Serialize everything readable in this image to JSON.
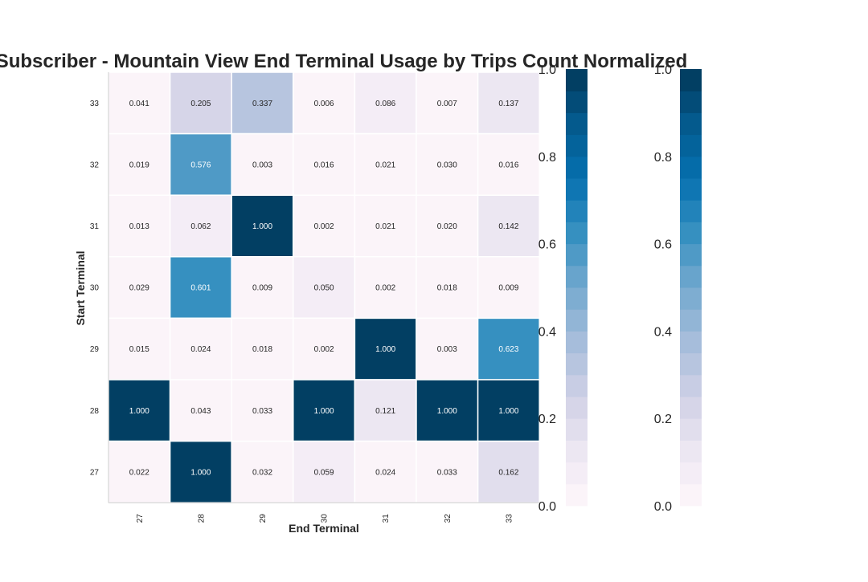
{
  "chart_data": {
    "type": "heatmap",
    "title": "Subscriber - Mountain View End Terminal Usage by Trips Count Normalized",
    "xlabel": "End Terminal",
    "ylabel": "Start Terminal",
    "x_categories": [
      "27",
      "28",
      "29",
      "30",
      "31",
      "32",
      "33"
    ],
    "y_categories": [
      "33",
      "32",
      "31",
      "30",
      "29",
      "28",
      "27"
    ],
    "values": [
      [
        0.041,
        0.205,
        0.337,
        0.006,
        0.086,
        0.007,
        0.137
      ],
      [
        0.019,
        0.576,
        0.003,
        0.016,
        0.021,
        0.03,
        0.016
      ],
      [
        0.013,
        0.062,
        1.0,
        0.002,
        0.021,
        0.02,
        0.142
      ],
      [
        0.029,
        0.601,
        0.009,
        0.05,
        0.002,
        0.018,
        0.009
      ],
      [
        0.015,
        0.024,
        0.018,
        0.002,
        1.0,
        0.003,
        0.623
      ],
      [
        1.0,
        0.043,
        0.033,
        1.0,
        0.121,
        1.0,
        1.0
      ],
      [
        0.022,
        1.0,
        0.032,
        0.059,
        0.024,
        0.033,
        0.162
      ]
    ],
    "value_format": "0.000",
    "color_range": [
      0.0,
      1.0
    ],
    "colormap": "PuBu",
    "colormap_steps": 20,
    "colorbar_ticks": [
      "0.0",
      "0.2",
      "0.4",
      "0.6",
      "0.8",
      "1.0"
    ],
    "colorbar_count": 2,
    "grid": false,
    "colors": {
      "low": "#fff7fb",
      "high": "#034a6e",
      "text_dark": "#262626",
      "text_light": "#ffffff",
      "cell_border": "#ffffff",
      "axis": "#cccccc"
    }
  }
}
